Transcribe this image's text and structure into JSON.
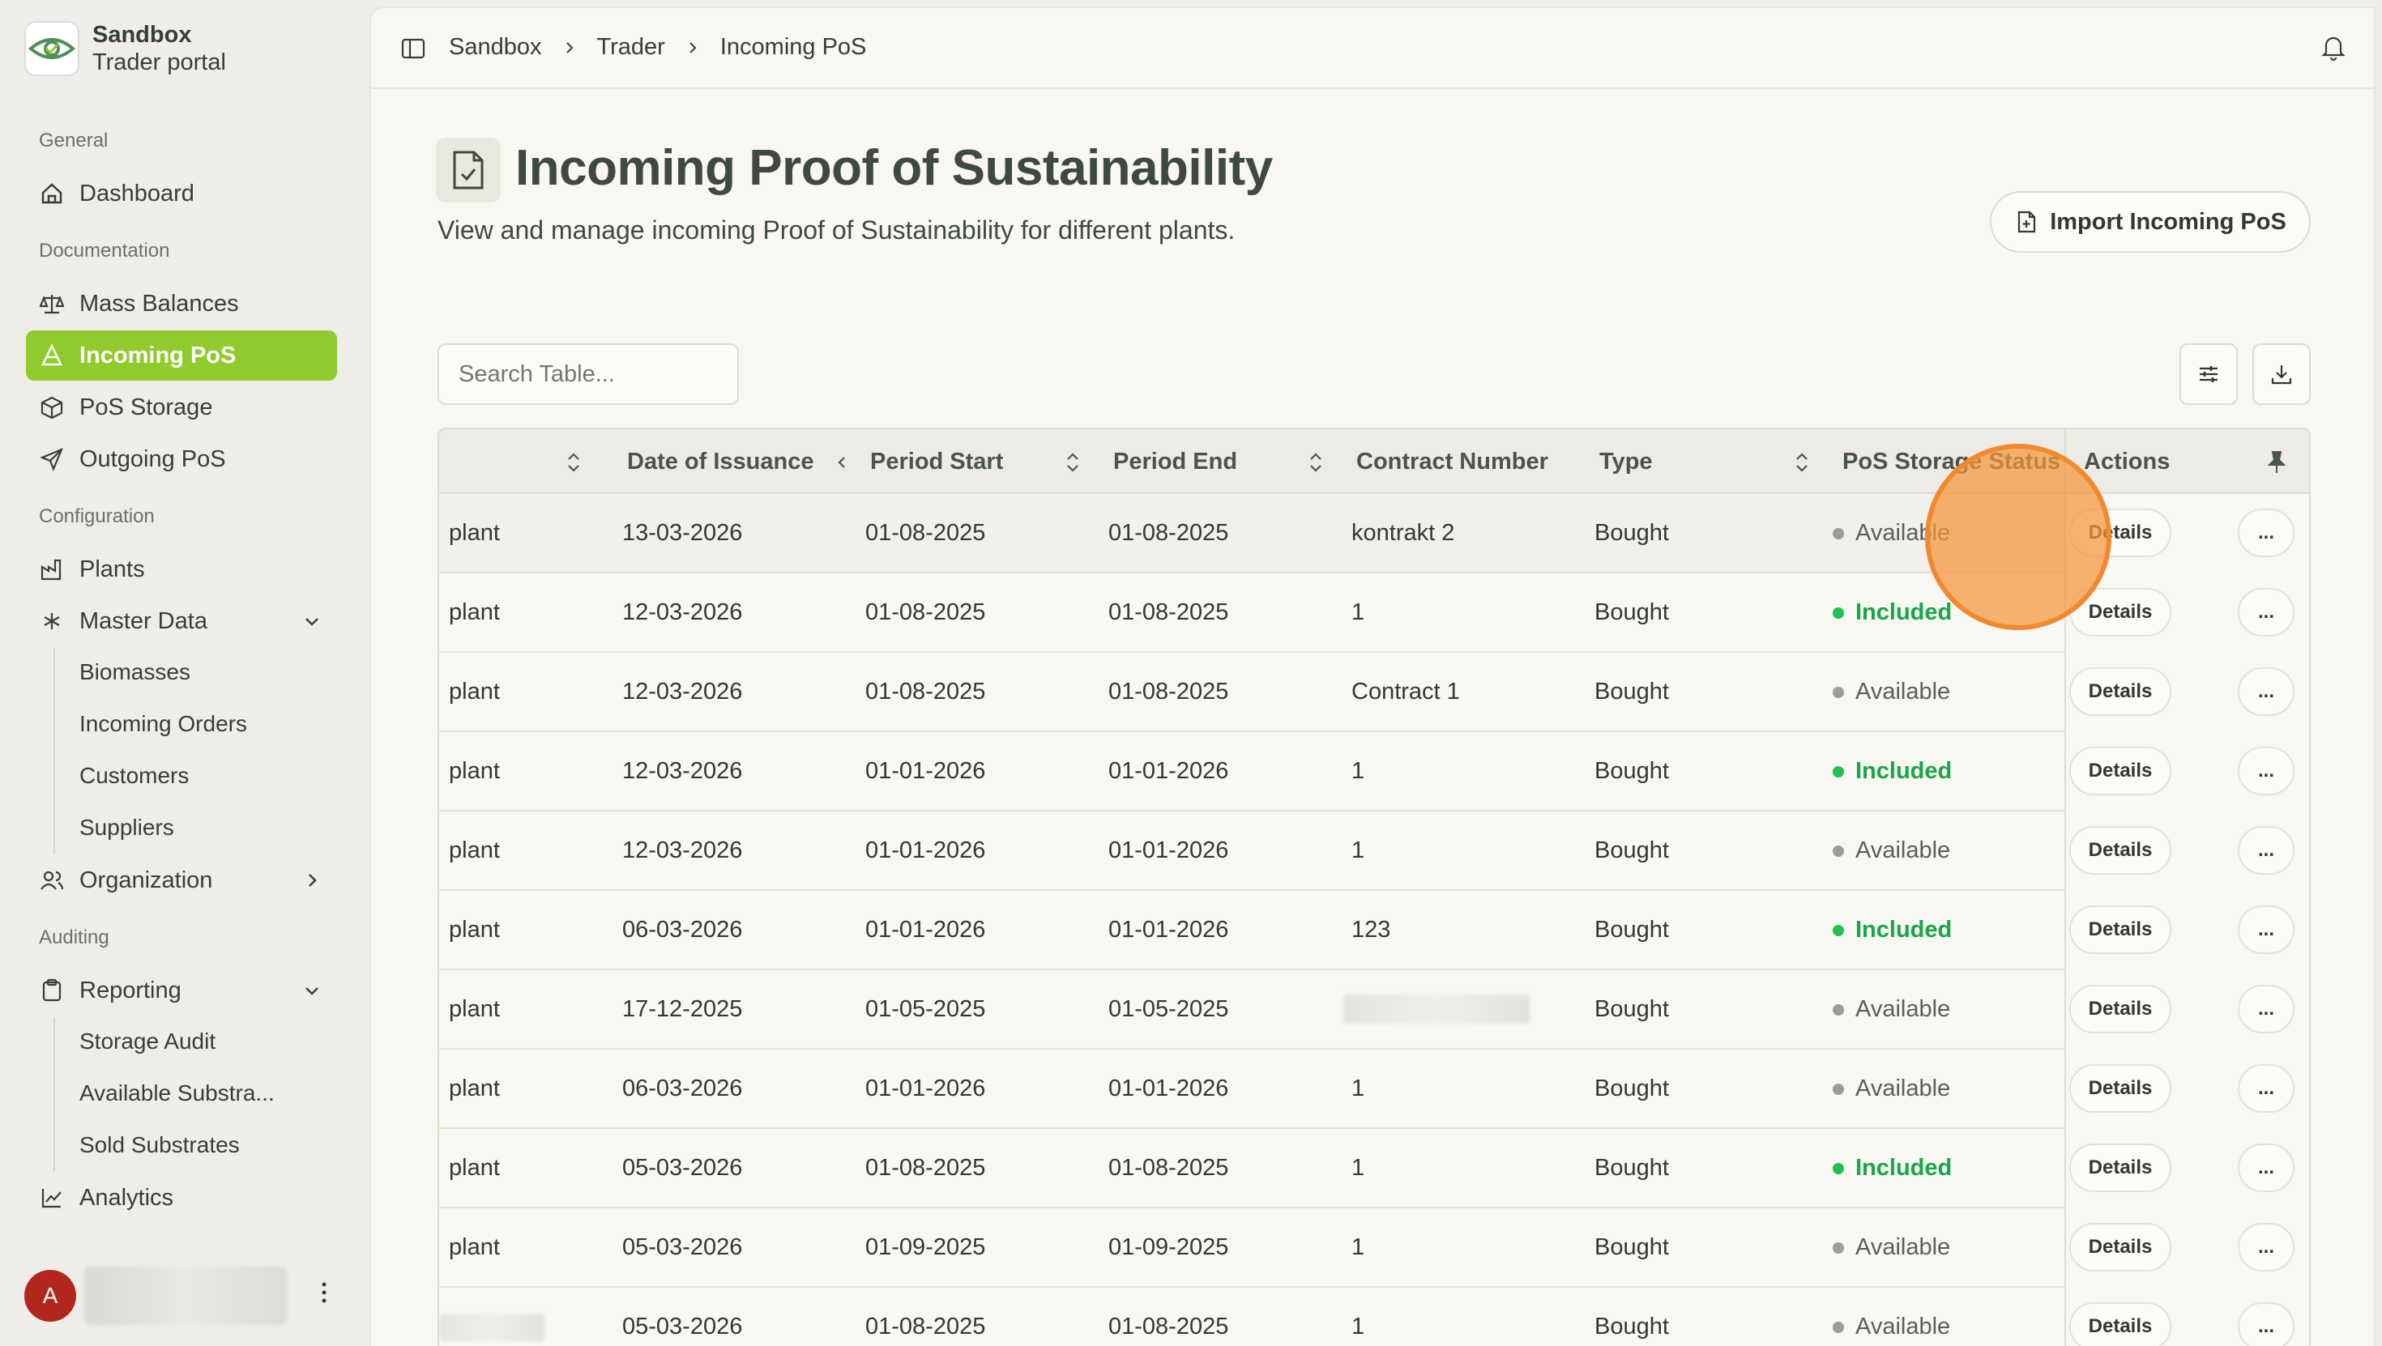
{
  "brand": {
    "name": "Sandbox",
    "subtitle": "Trader portal"
  },
  "sidebar": {
    "sections": {
      "general": "General",
      "documentation": "Documentation",
      "configuration": "Configuration",
      "auditing": "Auditing"
    },
    "items": {
      "dashboard": "Dashboard",
      "mass_balances": "Mass Balances",
      "incoming_pos": "Incoming PoS",
      "pos_storage": "PoS Storage",
      "outgoing_pos": "Outgoing PoS",
      "plants": "Plants",
      "master_data": "Master Data",
      "biomasses": "Biomasses",
      "incoming_orders": "Incoming Orders",
      "customers": "Customers",
      "suppliers": "Suppliers",
      "organization": "Organization",
      "reporting": "Reporting",
      "storage_audit": "Storage Audit",
      "available_substrates": "Available Substra...",
      "sold_substrates": "Sold Substrates",
      "analytics": "Analytics"
    },
    "user_initial": "A"
  },
  "breadcrumb": [
    "Sandbox",
    "Trader",
    "Incoming PoS"
  ],
  "page": {
    "title": "Incoming Proof of Sustainability",
    "description": "View and manage incoming Proof of Sustainability for different plants.",
    "import_button": "Import Incoming PoS",
    "search_placeholder": "Search Table..."
  },
  "table": {
    "headers": {
      "date_of_issuance": "Date of Issuance",
      "period_start": "Period Start",
      "period_end": "Period End",
      "contract_number": "Contract Number",
      "type": "Type",
      "pos_storage_status": "PoS Storage Status",
      "actions": "Actions"
    },
    "details_label": "Details",
    "more_label": "...",
    "rows": [
      {
        "plant": "plant",
        "issued": "13-03-2026",
        "start": "01-08-2025",
        "end": "01-08-2025",
        "contract": "kontrakt 2",
        "type": "Bought",
        "status": "Available"
      },
      {
        "plant": "plant",
        "issued": "12-03-2026",
        "start": "01-08-2025",
        "end": "01-08-2025",
        "contract": "1",
        "type": "Bought",
        "status": "Included"
      },
      {
        "plant": "plant",
        "issued": "12-03-2026",
        "start": "01-08-2025",
        "end": "01-08-2025",
        "contract": "Contract 1",
        "type": "Bought",
        "status": "Available"
      },
      {
        "plant": "plant",
        "issued": "12-03-2026",
        "start": "01-01-2026",
        "end": "01-01-2026",
        "contract": "1",
        "type": "Bought",
        "status": "Included"
      },
      {
        "plant": "plant",
        "issued": "12-03-2026",
        "start": "01-01-2026",
        "end": "01-01-2026",
        "contract": "1",
        "type": "Bought",
        "status": "Available"
      },
      {
        "plant": "plant",
        "issued": "06-03-2026",
        "start": "01-01-2026",
        "end": "01-01-2026",
        "contract": "123",
        "type": "Bought",
        "status": "Included"
      },
      {
        "plant": "plant",
        "issued": "17-12-2025",
        "start": "01-05-2025",
        "end": "01-05-2025",
        "contract": "",
        "type": "Bought",
        "status": "Available"
      },
      {
        "plant": "plant",
        "issued": "06-03-2026",
        "start": "01-01-2026",
        "end": "01-01-2026",
        "contract": "1",
        "type": "Bought",
        "status": "Available"
      },
      {
        "plant": "plant",
        "issued": "05-03-2026",
        "start": "01-08-2025",
        "end": "01-08-2025",
        "contract": "1",
        "type": "Bought",
        "status": "Included"
      },
      {
        "plant": "plant",
        "issued": "05-03-2026",
        "start": "01-09-2025",
        "end": "01-09-2025",
        "contract": "1",
        "type": "Bought",
        "status": "Available"
      },
      {
        "plant": "",
        "issued": "05-03-2026",
        "start": "01-08-2025",
        "end": "01-08-2025",
        "contract": "1",
        "type": "Bought",
        "status": "Available"
      }
    ]
  },
  "colors": {
    "accent": "#8fcb2c",
    "included": "#1aa64a",
    "available_dot": "#9a9d97",
    "cursor": "#f2892f"
  }
}
